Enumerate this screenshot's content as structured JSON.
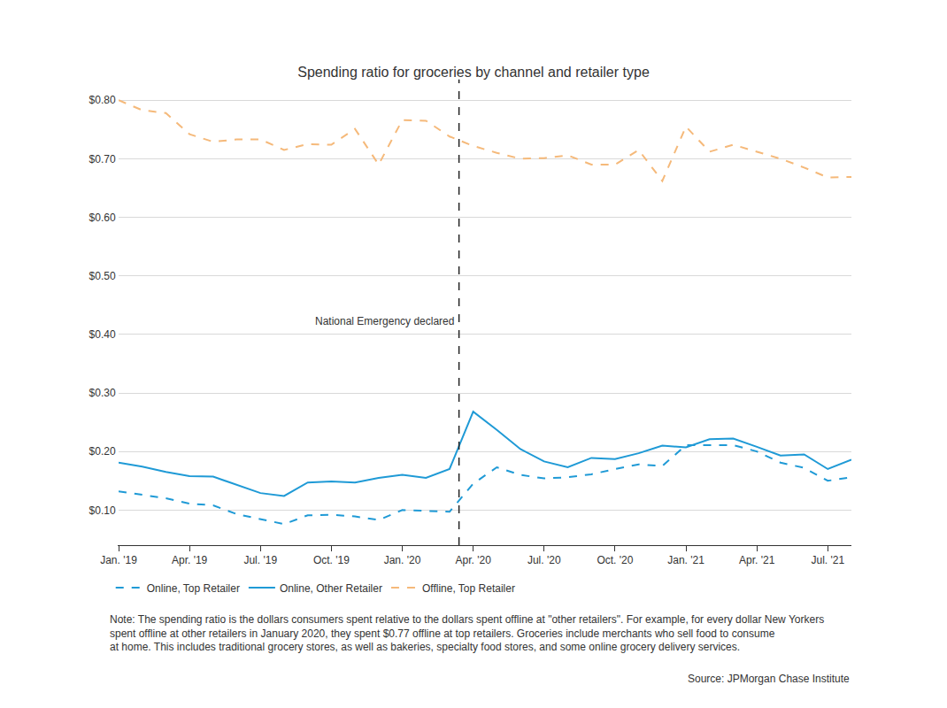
{
  "chart_data": {
    "type": "line",
    "title": "Spending ratio for groceries by channel and retailer type",
    "categories": [
      "Jan. '19",
      null,
      null,
      "Apr. '19",
      null,
      null,
      "Jul. '19",
      null,
      null,
      "Oct. '19",
      null,
      null,
      "Jan. '20",
      null,
      null,
      "Apr. '20",
      null,
      null,
      "Jul. '20",
      null,
      null,
      "Oct. '20",
      null,
      null,
      "Jan. '21",
      null,
      null,
      "Apr. '21",
      null,
      null,
      "Jul. '21",
      null
    ],
    "series": [
      {
        "name": "Online, Top Retailer",
        "color": "#1f9ad6",
        "line_style": "dashed",
        "values": [
          0.132,
          0.126,
          0.12,
          0.111,
          0.108,
          0.093,
          0.085,
          0.076,
          0.091,
          0.092,
          0.089,
          0.083,
          0.1,
          0.098,
          0.097,
          0.145,
          0.173,
          0.16,
          0.154,
          0.156,
          0.161,
          0.17,
          0.178,
          0.175,
          0.211,
          0.211,
          0.211,
          0.2,
          0.181,
          0.172,
          0.15,
          0.156
        ]
      },
      {
        "name": "Online, Other Retailer",
        "color": "#1f9ad6",
        "line_style": "solid",
        "values": [
          0.181,
          0.174,
          0.165,
          0.158,
          0.157,
          0.143,
          0.129,
          0.124,
          0.147,
          0.149,
          0.147,
          0.155,
          0.16,
          0.155,
          0.17,
          0.268,
          0.237,
          0.204,
          0.183,
          0.173,
          0.189,
          0.187,
          0.197,
          0.21,
          0.207,
          0.221,
          0.222,
          0.208,
          0.193,
          0.195,
          0.17,
          0.186
        ]
      },
      {
        "name": "Offline, Top Retailer",
        "color": "#f5b97a",
        "line_style": "dashed",
        "values": [
          0.8,
          0.783,
          0.778,
          0.742,
          0.729,
          0.733,
          0.733,
          0.715,
          0.725,
          0.724,
          0.751,
          0.69,
          0.766,
          0.765,
          0.738,
          0.722,
          0.71,
          0.7,
          0.701,
          0.706,
          0.69,
          0.69,
          0.715,
          0.662,
          0.755,
          0.712,
          0.724,
          0.712,
          0.7,
          0.685,
          0.668,
          0.669
        ]
      }
    ],
    "ylim": [
      0.04,
      0.82
    ],
    "yticks": [
      {
        "value": 0.1,
        "label": "$0.10"
      },
      {
        "value": 0.2,
        "label": "$0.20"
      },
      {
        "value": 0.3,
        "label": "$0.30"
      },
      {
        "value": 0.4,
        "label": "$0.40"
      },
      {
        "value": 0.5,
        "label": "$0.50"
      },
      {
        "value": 0.6,
        "label": "$0.60"
      },
      {
        "value": 0.7,
        "label": "$0.70"
      },
      {
        "value": 0.8,
        "label": "$0.80"
      }
    ],
    "grid": true,
    "legend": "bottom",
    "vline": {
      "x": 14.4,
      "label": "National Emergency declared"
    },
    "note": [
      "Note: The spending ratio is the dollars consumers spent relative to the dollars spent offline at \"other retailers\". For example, for every dollar New Yorkers",
      "spent offline at other retailers in January 2020, they spent $0.77 offline at top retailers. Groceries include merchants who sell food to consume",
      "at home. This includes traditional grocery stores, as well as bakeries, specialty food stores, and some online grocery delivery services."
    ],
    "source": "Source: JPMorgan Chase Institute"
  }
}
